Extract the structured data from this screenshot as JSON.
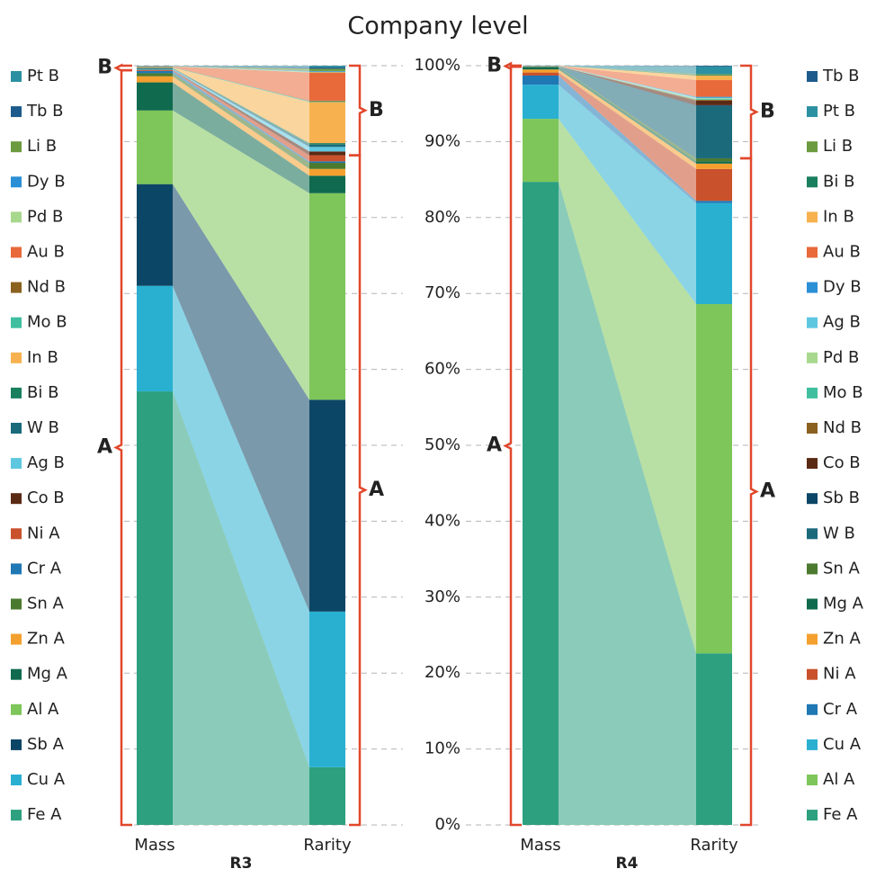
{
  "chart_data": {
    "type": "bar",
    "title": "Company level",
    "categories": [
      "Mass",
      "Rarity"
    ],
    "ylim": [
      0,
      100
    ],
    "yticks": [
      {
        "value": 0,
        "label": "0%"
      },
      {
        "value": 10,
        "label": "10%"
      },
      {
        "value": 20,
        "label": "20%"
      },
      {
        "value": 30,
        "label": "30%"
      },
      {
        "value": 40,
        "label": "40%"
      },
      {
        "value": 50,
        "label": "50%"
      },
      {
        "value": 60,
        "label": "60%"
      },
      {
        "value": 70,
        "label": "70%"
      },
      {
        "value": 80,
        "label": "80%"
      },
      {
        "value": 90,
        "label": "90%"
      },
      {
        "value": 100,
        "label": "100%"
      }
    ],
    "grid": true,
    "annotations": [
      "A",
      "B"
    ],
    "panels": [
      {
        "label": "R3",
        "series": [
          {
            "name": "Fe A",
            "color": "#2ca07f",
            "values": [
              57.1,
              7.6
            ]
          },
          {
            "name": "Cu A",
            "color": "#29b0d1",
            "values": [
              13.9,
              20.5
            ]
          },
          {
            "name": "Sb A",
            "color": "#0c4666",
            "values": [
              13.4,
              27.9
            ]
          },
          {
            "name": "Al A",
            "color": "#7ec65a",
            "values": [
              9.7,
              27.2
            ]
          },
          {
            "name": "Mg A",
            "color": "#0f6a4e",
            "values": [
              3.7,
              2.3
            ]
          },
          {
            "name": "Zn A",
            "color": "#f4a02e",
            "values": [
              0.8,
              0.9
            ]
          },
          {
            "name": "Sn A",
            "color": "#4b7a2f",
            "values": [
              0.4,
              0.8
            ]
          },
          {
            "name": "Cr A",
            "color": "#1f77b4",
            "values": [
              0.3,
              0.2
            ]
          },
          {
            "name": "Ni A",
            "color": "#c9512b",
            "values": [
              0.1,
              0.8
            ]
          },
          {
            "name": "Co B",
            "color": "#5b2a14",
            "values": [
              0.05,
              0.5
            ]
          },
          {
            "name": "Ag B",
            "color": "#5ec7e0",
            "values": [
              0.1,
              0.6
            ]
          },
          {
            "name": "W B",
            "color": "#1b6a7c",
            "values": [
              0.1,
              0.3
            ]
          },
          {
            "name": "Bi B",
            "color": "#1a7f5f",
            "values": [
              0.05,
              0.2
            ]
          },
          {
            "name": "In B",
            "color": "#f7b24f",
            "values": [
              0.05,
              5.4
            ]
          },
          {
            "name": "Mo B",
            "color": "#3fbf9f",
            "values": [
              0.05,
              0.1
            ]
          },
          {
            "name": "Nd B",
            "color": "#8b6120",
            "values": [
              0.05,
              0.1
            ]
          },
          {
            "name": "Au B",
            "color": "#e8693a",
            "values": [
              0.05,
              3.7
            ]
          },
          {
            "name": "Pd B",
            "color": "#a8d88e",
            "values": [
              0.02,
              0.1
            ]
          },
          {
            "name": "Dy B",
            "color": "#2b8fd6",
            "values": [
              0.02,
              0.1
            ]
          },
          {
            "name": "Li B",
            "color": "#6b9b3e",
            "values": [
              0.02,
              0.3
            ]
          },
          {
            "name": "Tb B",
            "color": "#1c5b8b",
            "values": [
              0.02,
              0.2
            ]
          },
          {
            "name": "Pt B",
            "color": "#2b90a1",
            "values": [
              0.02,
              0.2
            ]
          }
        ]
      },
      {
        "label": "R4",
        "series": [
          {
            "name": "Fe A",
            "color": "#2ca07f",
            "values": [
              84.7,
              22.6
            ]
          },
          {
            "name": "Al A",
            "color": "#7ec65a",
            "values": [
              8.3,
              46.0
            ]
          },
          {
            "name": "Cu A",
            "color": "#29b0d1",
            "values": [
              4.5,
              13.3
            ]
          },
          {
            "name": "Cr A",
            "color": "#1f77b4",
            "values": [
              1.2,
              0.3
            ]
          },
          {
            "name": "Ni A",
            "color": "#c9512b",
            "values": [
              0.4,
              4.2
            ]
          },
          {
            "name": "Zn A",
            "color": "#f4a02e",
            "values": [
              0.4,
              0.7
            ]
          },
          {
            "name": "Mg A",
            "color": "#0f6a4e",
            "values": [
              0.3,
              0.3
            ]
          },
          {
            "name": "Sn A",
            "color": "#4b7a2f",
            "values": [
              0.05,
              0.4
            ]
          },
          {
            "name": "W B",
            "color": "#1b6a7c",
            "values": [
              0.03,
              6.9
            ]
          },
          {
            "name": "Sb B",
            "color": "#0c4666",
            "values": [
              0.02,
              0.1
            ]
          },
          {
            "name": "Co B",
            "color": "#5b2a14",
            "values": [
              0.01,
              0.6
            ]
          },
          {
            "name": "Nd B",
            "color": "#8b6120",
            "values": [
              0.01,
              0.1
            ]
          },
          {
            "name": "Mo B",
            "color": "#3fbf9f",
            "values": [
              0.01,
              0.1
            ]
          },
          {
            "name": "Pd B",
            "color": "#a8d88e",
            "values": [
              0.01,
              0.1
            ]
          },
          {
            "name": "Ag B",
            "color": "#5ec7e0",
            "values": [
              0.01,
              0.1
            ]
          },
          {
            "name": "Dy B",
            "color": "#2b8fd6",
            "values": [
              0.01,
              0.1
            ]
          },
          {
            "name": "Au B",
            "color": "#e8693a",
            "values": [
              0.01,
              2.2
            ]
          },
          {
            "name": "In B",
            "color": "#f7b24f",
            "values": [
              0.01,
              0.6
            ]
          },
          {
            "name": "Bi B",
            "color": "#1a7f5f",
            "values": [
              0.01,
              0.1
            ]
          },
          {
            "name": "Li B",
            "color": "#6b9b3e",
            "values": [
              0.01,
              0.1
            ]
          },
          {
            "name": "Pt B",
            "color": "#2b90a1",
            "values": [
              0.01,
              1.0
            ]
          },
          {
            "name": "Tb B",
            "color": "#1c5b8b",
            "values": [
              0.01,
              0.1
            ]
          }
        ]
      }
    ]
  }
}
